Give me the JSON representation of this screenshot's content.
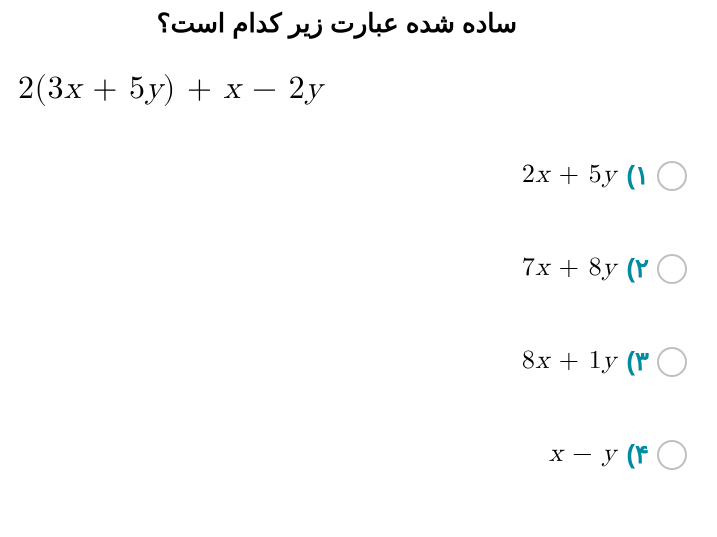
{
  "question": {
    "title": "ساده شده عبارت زیر کدام است؟",
    "expression": "2(3x + 5y) + x − 2y",
    "title_fontsize": 26,
    "expression_fontsize": 32,
    "option_number_color": "#008ba3",
    "text_color": "#000000",
    "radio_border_color": "#bfbfbf",
    "background_color": "#ffffff"
  },
  "options": [
    {
      "number": "۱)",
      "math": "2x + 5y"
    },
    {
      "number": "۲)",
      "math": "7x + 8y"
    },
    {
      "number": "۳)",
      "math": "8x + 1y"
    },
    {
      "number": "۴)",
      "math": "x − y"
    }
  ]
}
